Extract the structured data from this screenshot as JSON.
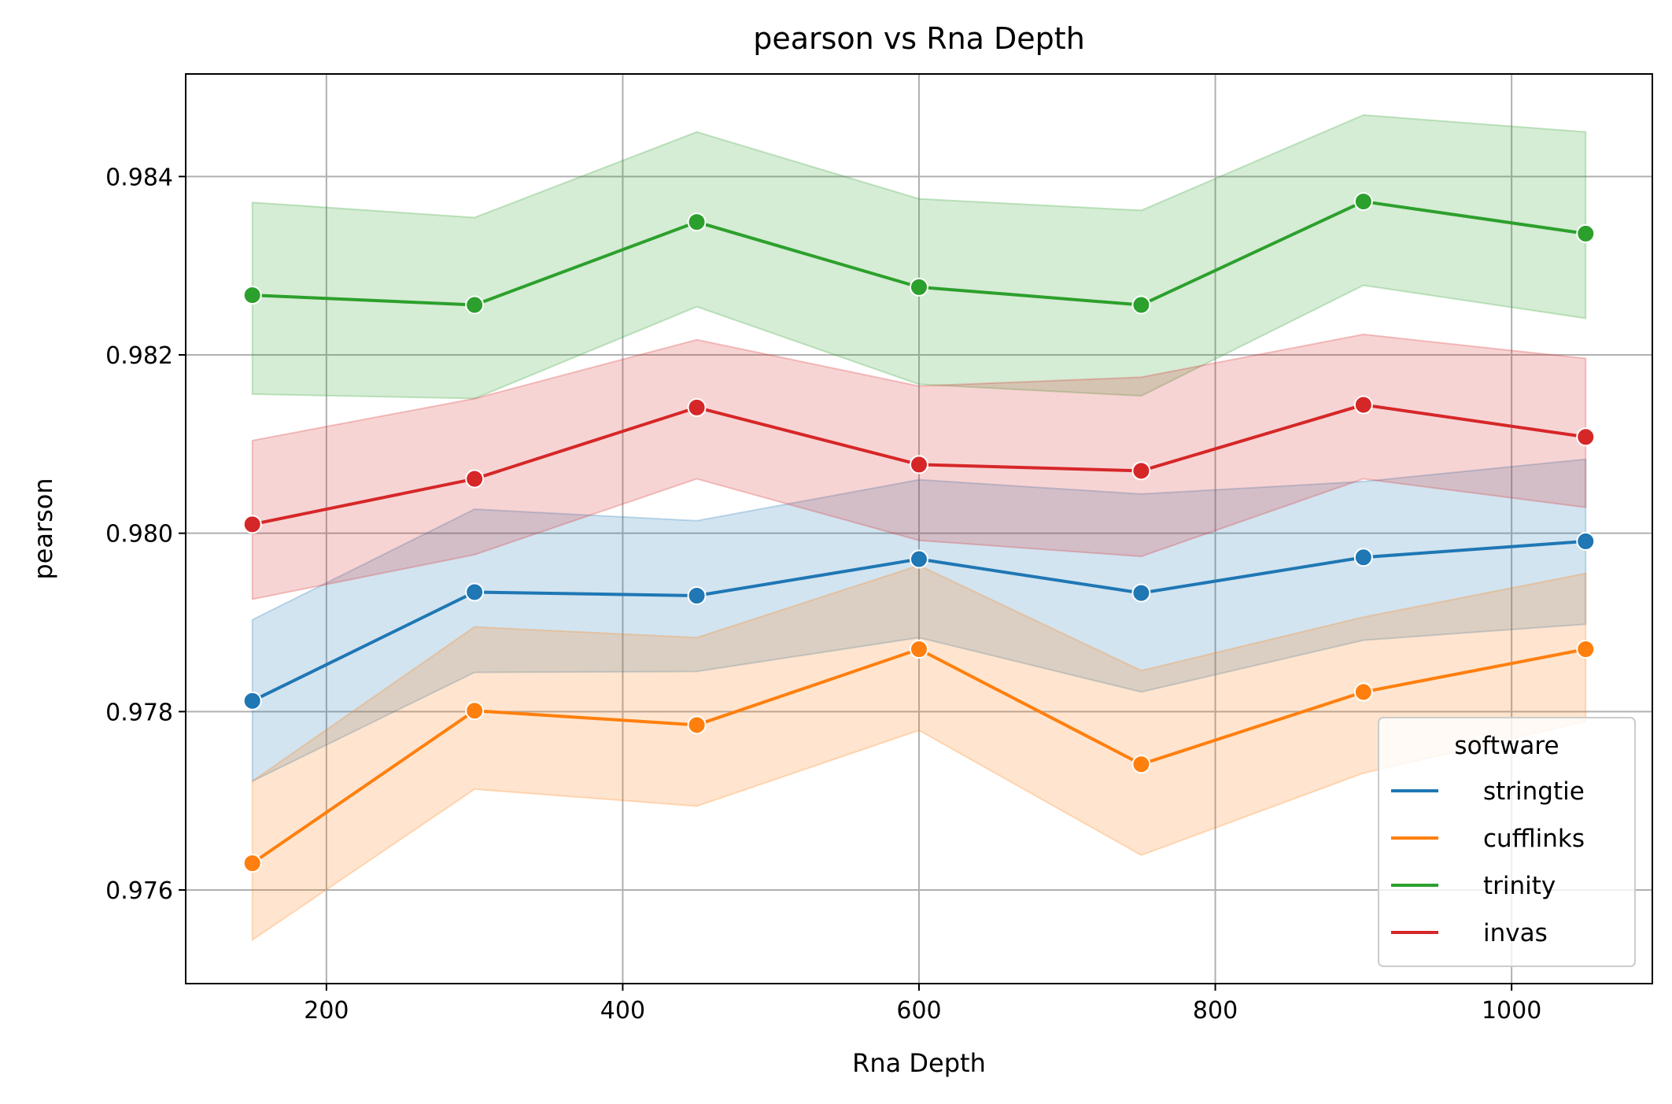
{
  "chart_data": {
    "type": "line",
    "title": "pearson vs Rna Depth",
    "xlabel": "Rna Depth",
    "ylabel": "pearson",
    "xlim": [
      105,
      1095
    ],
    "ylim": [
      0.97495,
      0.98515
    ],
    "xticks": [
      200,
      400,
      600,
      800,
      1000
    ],
    "yticks": [
      0.976,
      0.978,
      0.98,
      0.982,
      0.984
    ],
    "ytick_labels": [
      "0.976",
      "0.978",
      "0.980",
      "0.982",
      "0.984"
    ],
    "grid": true,
    "legend": {
      "title": "software",
      "placement": "bottom-right"
    },
    "x": [
      150,
      300,
      450,
      600,
      750,
      900,
      1050
    ],
    "series": [
      {
        "name": "stringtie",
        "color": "#1f77b4",
        "values": [
          0.97812,
          0.97934,
          0.9793,
          0.97971,
          0.97933,
          0.97973,
          0.97991
        ],
        "ci_low": [
          0.97722,
          0.97844,
          0.97845,
          0.97883,
          0.97822,
          0.9788,
          0.97898
        ],
        "ci_high": [
          0.97903,
          0.98027,
          0.98014,
          0.9806,
          0.98044,
          0.98058,
          0.98083
        ]
      },
      {
        "name": "cufflinks",
        "color": "#ff7f0e",
        "values": [
          0.9763,
          0.97801,
          0.97785,
          0.9787,
          0.97741,
          0.97822,
          0.9787
        ],
        "ci_low": [
          0.97544,
          0.97713,
          0.97694,
          0.97779,
          0.97639,
          0.97731,
          0.97789
        ],
        "ci_high": [
          0.97722,
          0.97895,
          0.97883,
          0.97964,
          0.97846,
          0.97906,
          0.97955
        ]
      },
      {
        "name": "trinity",
        "color": "#2ca02c",
        "values": [
          0.98267,
          0.98256,
          0.98349,
          0.98276,
          0.98256,
          0.98372,
          0.98336
        ],
        "ci_low": [
          0.98156,
          0.98151,
          0.98254,
          0.98167,
          0.98154,
          0.98278,
          0.98241
        ],
        "ci_high": [
          0.98371,
          0.98354,
          0.9845,
          0.98375,
          0.98362,
          0.98469,
          0.9845
        ]
      },
      {
        "name": "invas",
        "color": "#d62728",
        "values": [
          0.9801,
          0.98061,
          0.98141,
          0.98077,
          0.9807,
          0.98144,
          0.98108
        ],
        "ci_low": [
          0.97926,
          0.97976,
          0.98061,
          0.97992,
          0.97974,
          0.98061,
          0.98029
        ],
        "ci_high": [
          0.98104,
          0.98151,
          0.98217,
          0.98165,
          0.98175,
          0.98223,
          0.98196
        ]
      }
    ]
  }
}
